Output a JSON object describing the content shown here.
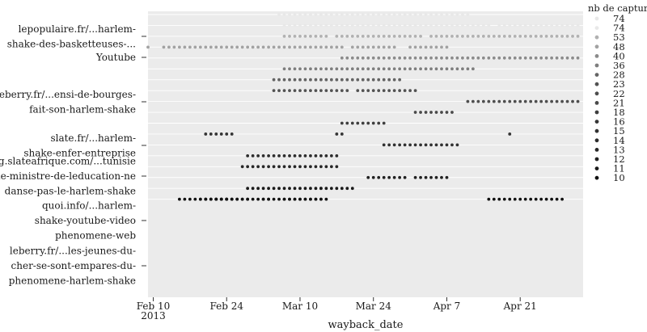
{
  "chart_data": {
    "type": "scatter",
    "xlabel": "wayback_date",
    "x_ticks": [
      "Feb 10\n2013",
      "Feb 24",
      "Mar 10",
      "Mar 24",
      "Apr 7",
      "Apr 21"
    ],
    "x_tick_dates": [
      "2013-02-10",
      "2013-02-24",
      "2013-03-10",
      "2013-03-24",
      "2013-04-07",
      "2013-04-21"
    ],
    "xlim": [
      "2013-02-09",
      "2013-05-03"
    ],
    "y_labels": [
      "lepopulaire.fr/...harlem-\nshake-des-basketteuses-...",
      "Youtube",
      "leberry.fr/...ensi-de-bourges-\nfait-son-harlem-shake",
      "slate.fr/...harlem-\nshake-enfer-entreprise",
      "blog.slateafrique.com/...tunisie\n...le-ministre-de-leducation-ne\ndanse-pas-le-harlem-shake",
      "quoi.info/...harlem-\nshake-youtube-video\nphenomene-web",
      "leberry.fr/...les-jeunes-du-\ncher-se-sont-empares-du-\nphenomene-harlem-shake"
    ],
    "legend": {
      "title": "nb de capture",
      "position": "right",
      "values": [
        74,
        74,
        53,
        48,
        40,
        36,
        28,
        23,
        22,
        21,
        18,
        16,
        15,
        14,
        13,
        12,
        11,
        10
      ]
    },
    "series": [
      {
        "capture": 74,
        "segments": [
          [
            "2013-03-06",
            "2013-03-24"
          ],
          [
            "2013-03-25",
            "2013-04-11"
          ]
        ]
      },
      {
        "capture": 74,
        "segments": [
          [
            "2013-03-07",
            "2013-03-20"
          ],
          [
            "2013-03-21",
            "2013-04-15"
          ],
          [
            "2013-04-17",
            "2013-05-02"
          ]
        ]
      },
      {
        "capture": 53,
        "segments": [
          [
            "2013-03-07",
            "2013-03-15"
          ],
          [
            "2013-03-17",
            "2013-04-02"
          ],
          [
            "2013-04-04",
            "2013-05-02"
          ]
        ]
      },
      {
        "capture": 48,
        "segments": [
          [
            "2013-02-09",
            "2013-02-09"
          ],
          [
            "2013-02-12",
            "2013-03-18"
          ],
          [
            "2013-03-20",
            "2013-03-26"
          ],
          [
            "2013-03-27",
            "2013-03-28"
          ],
          [
            "2013-03-31",
            "2013-04-01"
          ],
          [
            "2013-04-02",
            "2013-04-07"
          ]
        ]
      },
      {
        "capture": 40,
        "segments": [
          [
            "2013-03-18",
            "2013-05-02"
          ]
        ]
      },
      {
        "capture": 36,
        "segments": [
          [
            "2013-03-07",
            "2013-04-12"
          ]
        ]
      },
      {
        "capture": 28,
        "segments": [
          [
            "2013-03-05",
            "2013-03-29"
          ]
        ]
      },
      {
        "capture": 23,
        "segments": [
          [
            "2013-03-05",
            "2013-03-19"
          ],
          [
            "2013-03-21",
            "2013-04-01"
          ]
        ]
      },
      {
        "capture": 22,
        "segments": [
          [
            "2013-04-11",
            "2013-05-02"
          ]
        ]
      },
      {
        "capture": 21,
        "segments": [
          [
            "2013-04-01",
            "2013-04-08"
          ]
        ]
      },
      {
        "capture": 18,
        "segments": [
          [
            "2013-03-18",
            "2013-03-26"
          ]
        ]
      },
      {
        "capture": 16,
        "segments": [
          [
            "2013-03-17",
            "2013-03-18"
          ],
          [
            "2013-02-20",
            "2013-02-25"
          ],
          [
            "2013-04-19",
            "2013-04-19"
          ]
        ]
      },
      {
        "capture": 15,
        "segments": [
          [
            "2013-03-26",
            "2013-04-09"
          ]
        ]
      },
      {
        "capture": 14,
        "segments": [
          [
            "2013-02-28",
            "2013-03-17"
          ]
        ]
      },
      {
        "capture": 13,
        "segments": [
          [
            "2013-02-27",
            "2013-03-11"
          ],
          [
            "2013-03-12",
            "2013-03-17"
          ]
        ]
      },
      {
        "capture": 12,
        "segments": [
          [
            "2013-03-23",
            "2013-03-30"
          ],
          [
            "2013-04-01",
            "2013-04-05"
          ],
          [
            "2013-04-06",
            "2013-04-07"
          ]
        ]
      },
      {
        "capture": 11,
        "segments": [
          [
            "2013-02-28",
            "2013-03-20"
          ],
          [
            "2013-03-14",
            "2013-03-14"
          ]
        ]
      },
      {
        "capture": 10,
        "segments": [
          [
            "2013-02-19",
            "2013-02-24"
          ],
          [
            "2013-02-15",
            "2013-02-28"
          ],
          [
            "2013-02-20",
            "2013-02-25"
          ],
          [
            "2013-04-15",
            "2013-04-29"
          ],
          [
            "2013-02-22",
            "2013-03-04"
          ],
          [
            "2013-03-03",
            "2013-03-15"
          ],
          [
            "2013-03-07",
            "2013-03-14"
          ]
        ]
      }
    ],
    "grid": true,
    "colors": {
      "panel": "#ebebeb",
      "gridline": "#ffffff",
      "lightest": "#e8e8e8",
      "darkest": "#111111"
    }
  }
}
